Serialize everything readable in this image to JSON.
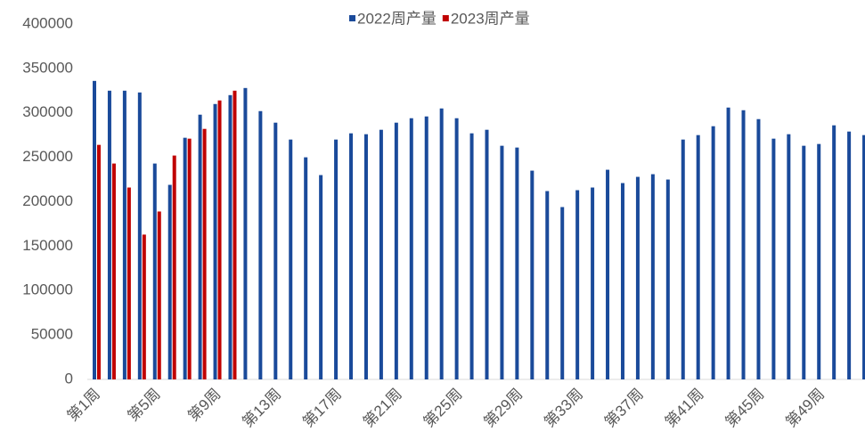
{
  "chart_data": {
    "type": "bar",
    "categories": [
      "第1周",
      null,
      null,
      null,
      "第5周",
      null,
      null,
      null,
      "第9周",
      null,
      null,
      null,
      "第13周",
      null,
      null,
      null,
      "第17周",
      null,
      null,
      null,
      "第21周",
      null,
      null,
      null,
      "第25周",
      null,
      null,
      null,
      "第29周",
      null,
      null,
      null,
      "第33周",
      null,
      null,
      null,
      "第37周",
      null,
      null,
      null,
      "第41周",
      null,
      null,
      null,
      "第45周",
      null,
      null,
      null,
      "第49周",
      null,
      null,
      null
    ],
    "series": [
      {
        "name": "2022周产量",
        "color": "#1a4a9a",
        "values": [
          336000,
          325000,
          325000,
          323000,
          243000,
          219000,
          272000,
          298000,
          310000,
          320000,
          328000,
          302000,
          289000,
          270000,
          250000,
          230000,
          270000,
          277000,
          276000,
          281000,
          289000,
          294000,
          296000,
          305000,
          294000,
          277000,
          281000,
          263000,
          261000,
          235000,
          212000,
          194000,
          213000,
          216000,
          236000,
          221000,
          228000,
          231000,
          225000,
          270000,
          275000,
          285000,
          306000,
          303000,
          293000,
          271000,
          276000,
          263000,
          265000,
          286000,
          279000,
          275000
        ]
      },
      {
        "name": "2023周产量",
        "color": "#c00000",
        "values": [
          264000,
          243000,
          216000,
          163000,
          189000,
          252000,
          271000,
          282000,
          314000,
          325000,
          null,
          null,
          null,
          null,
          null,
          null,
          null,
          null,
          null,
          null,
          null,
          null,
          null,
          null,
          null,
          null,
          null,
          null,
          null,
          null,
          null,
          null,
          null,
          null,
          null,
          null,
          null,
          null,
          null,
          null,
          null,
          null,
          null,
          null,
          null,
          null,
          null,
          null,
          null,
          null,
          null,
          null
        ]
      }
    ],
    "ylim": [
      0,
      400000
    ],
    "yticks": [
      0,
      50000,
      100000,
      150000,
      200000,
      250000,
      300000,
      350000,
      400000
    ],
    "grid": false,
    "legend": "top"
  }
}
